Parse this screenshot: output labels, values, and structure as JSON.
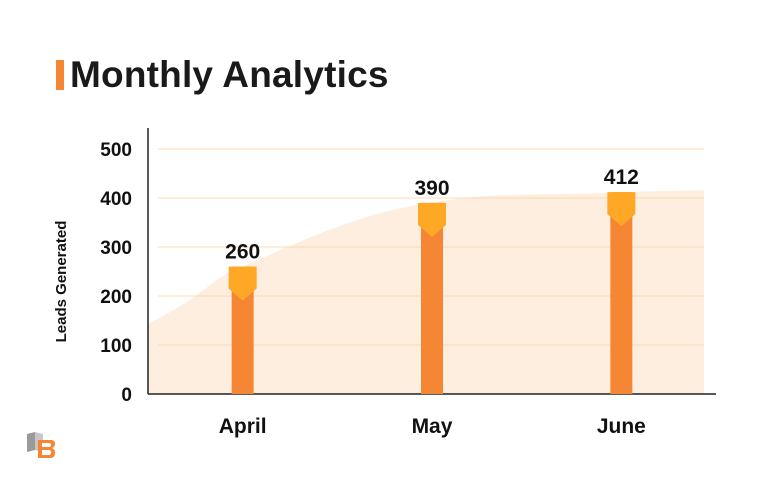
{
  "header": {
    "title": "Monthly Analytics",
    "accent_color": "#f58634"
  },
  "logo": {
    "text": "UB"
  },
  "chart_data": {
    "type": "bar",
    "title": "Monthly Analytics",
    "categories": [
      "April",
      "May",
      "June"
    ],
    "values": [
      260,
      390,
      412
    ],
    "data_labels": [
      "260",
      "390",
      "412"
    ],
    "xlabel": "",
    "ylabel": "Leads Generated",
    "ylim": [
      0,
      500
    ],
    "yticks": [
      0,
      100,
      200,
      300,
      400,
      500
    ],
    "ytick_labels": [
      "0",
      "100",
      "200",
      "300",
      "400",
      "500"
    ],
    "grid": true,
    "legend": "none",
    "colors": {
      "bar": "#f58634",
      "bar_cap": "#ffa826",
      "area": "#fdeedf",
      "grid": "#f8dcb0",
      "axis": "#222222"
    }
  }
}
